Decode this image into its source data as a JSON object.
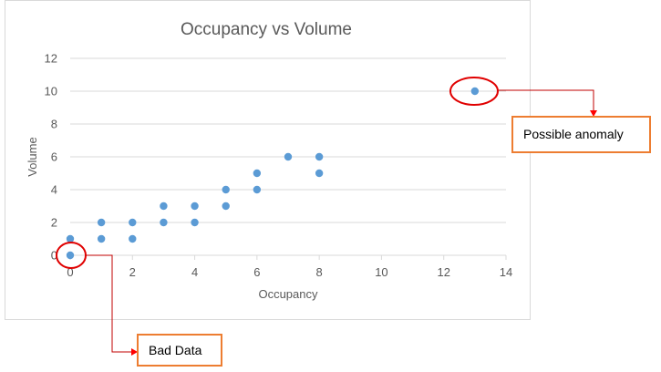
{
  "chart_data": {
    "type": "scatter",
    "title": "Occupancy vs Volume",
    "xlabel": "Occupancy",
    "ylabel": "Volume",
    "xlim": [
      0,
      14
    ],
    "ylim": [
      0,
      12
    ],
    "xticks": [
      0,
      2,
      4,
      6,
      8,
      10,
      12,
      14
    ],
    "yticks": [
      0,
      2,
      4,
      6,
      8,
      10,
      12
    ],
    "grid": "horizontal",
    "legend": "none",
    "series": [
      {
        "color": "#5b9bd5",
        "points": [
          {
            "x": 0,
            "y": 0
          },
          {
            "x": 0,
            "y": 1
          },
          {
            "x": 1,
            "y": 1
          },
          {
            "x": 1,
            "y": 2
          },
          {
            "x": 2,
            "y": 1
          },
          {
            "x": 2,
            "y": 2
          },
          {
            "x": 3,
            "y": 2
          },
          {
            "x": 3,
            "y": 3
          },
          {
            "x": 4,
            "y": 2
          },
          {
            "x": 4,
            "y": 3
          },
          {
            "x": 5,
            "y": 3
          },
          {
            "x": 5,
            "y": 4
          },
          {
            "x": 6,
            "y": 4
          },
          {
            "x": 6,
            "y": 5
          },
          {
            "x": 7,
            "y": 6
          },
          {
            "x": 8,
            "y": 5
          },
          {
            "x": 8,
            "y": 6
          },
          {
            "x": 13,
            "y": 10
          }
        ]
      }
    ],
    "annotations": [
      {
        "text": "Possible anomaly",
        "x": 13,
        "y": 10
      },
      {
        "text": "Bad Data",
        "x": 0,
        "y": 0
      }
    ]
  },
  "colors": {
    "marker": "#5b9bd5",
    "callout_line": "#c00000",
    "circle": "#e00000",
    "callout_border": "#ed7d31",
    "grid": "#d9d9d9",
    "text": "#595959",
    "title": "#595959",
    "frame": "#d9d9d9"
  }
}
